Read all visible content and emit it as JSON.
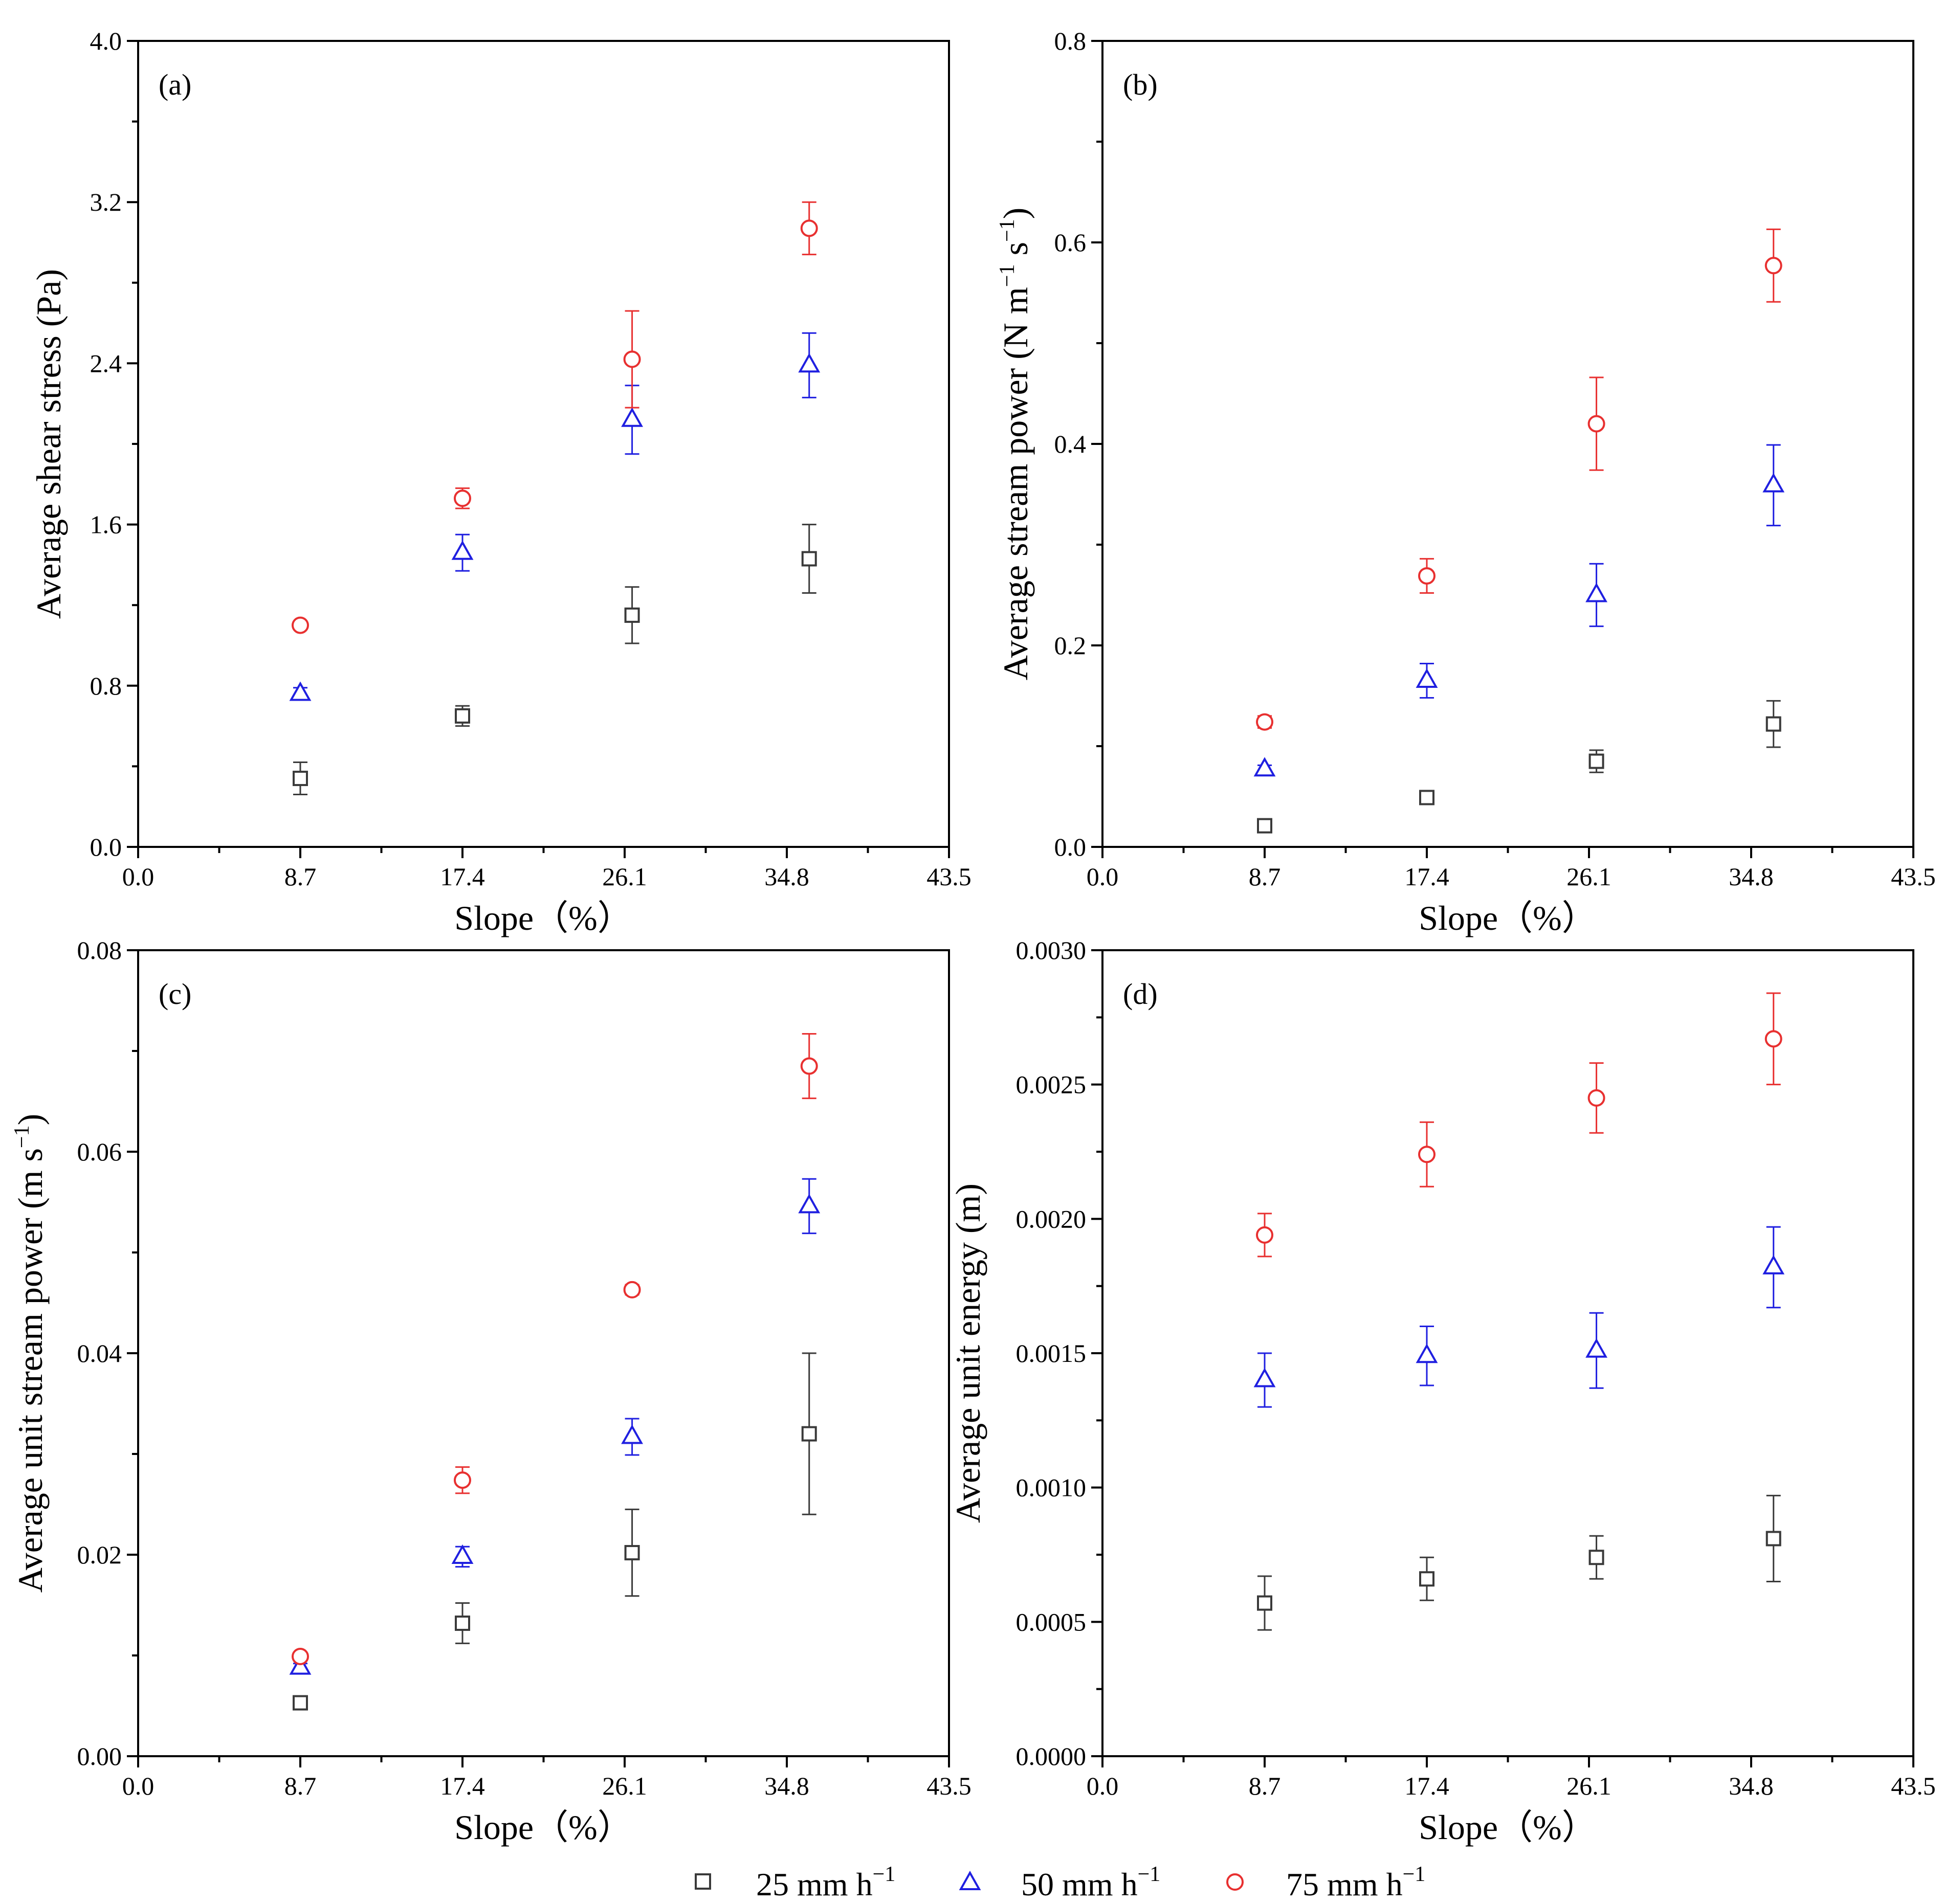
{
  "chart_data": [
    {
      "type": "scatter",
      "panel_label": "(a)",
      "xlabel": "Slope（%）",
      "ylabel": "Average shear stress (Pa)",
      "xlim": [
        0,
        43.5
      ],
      "ylim": [
        0,
        4.0
      ],
      "xticks": [
        "0.0",
        "8.7",
        "17.4",
        "26.1",
        "34.8",
        "43.5"
      ],
      "yticks": [
        "0.0",
        "0.8",
        "1.6",
        "2.4",
        "3.2",
        "4.0"
      ],
      "x": [
        8.7,
        17.4,
        26.5,
        36.0
      ],
      "series": [
        {
          "name": "25 mm h−1",
          "values": [
            0.34,
            0.65,
            1.15,
            1.43
          ],
          "errors": [
            0.08,
            0.05,
            0.14,
            0.17
          ]
        },
        {
          "name": "50 mm h−1",
          "values": [
            0.76,
            1.46,
            2.12,
            2.39
          ],
          "errors": [
            0.03,
            0.09,
            0.17,
            0.16
          ]
        },
        {
          "name": "75 mm h−1",
          "values": [
            1.1,
            1.73,
            2.42,
            3.07
          ],
          "errors": [
            0.01,
            0.05,
            0.24,
            0.13
          ]
        }
      ]
    },
    {
      "type": "scatter",
      "panel_label": "(b)",
      "xlabel": "Slope（%）",
      "ylabel_parts": [
        "Average stream power (N m",
        "−1",
        " s",
        "−1",
        ")"
      ],
      "xlim": [
        0,
        43.5
      ],
      "ylim": [
        0,
        0.8
      ],
      "xticks": [
        "0.0",
        "8.7",
        "17.4",
        "26.1",
        "34.8",
        "43.5"
      ],
      "yticks": [
        "0.0",
        "0.2",
        "0.4",
        "0.6",
        "0.8"
      ],
      "x": [
        8.7,
        17.4,
        26.5,
        36.0
      ],
      "series": [
        {
          "name": "25 mm h−1",
          "values": [
            0.021,
            0.049,
            0.085,
            0.122
          ],
          "errors": [
            0.003,
            0.005,
            0.011,
            0.023
          ]
        },
        {
          "name": "50 mm h−1",
          "values": [
            0.077,
            0.165,
            0.25,
            0.359
          ],
          "errors": [
            0.004,
            0.017,
            0.031,
            0.04
          ]
        },
        {
          "name": "75 mm h−1",
          "values": [
            0.124,
            0.269,
            0.42,
            0.577
          ],
          "errors": [
            0.006,
            0.017,
            0.046,
            0.036
          ]
        }
      ]
    },
    {
      "type": "scatter",
      "panel_label": "(c)",
      "xlabel": "Slope（%）",
      "ylabel_parts": [
        "Average unit stream power (m s",
        "−1",
        ")"
      ],
      "xlim": [
        0,
        43.5
      ],
      "ylim": [
        0,
        0.08
      ],
      "xticks": [
        "0.0",
        "8.7",
        "17.4",
        "26.1",
        "34.8",
        "43.5"
      ],
      "yticks": [
        "0.00",
        "0.02",
        "0.04",
        "0.06",
        "0.08"
      ],
      "x": [
        8.7,
        17.4,
        26.5,
        36.0
      ],
      "series": [
        {
          "name": "25 mm h−1",
          "values": [
            0.0053,
            0.0132,
            0.0202,
            0.032
          ],
          "errors": [
            0.0005,
            0.002,
            0.0043,
            0.008
          ]
        },
        {
          "name": "50 mm h−1",
          "values": [
            0.0088,
            0.0198,
            0.0317,
            0.0546
          ],
          "errors": [
            0.0004,
            0.001,
            0.0018,
            0.0027
          ]
        },
        {
          "name": "75 mm h−1",
          "values": [
            0.0099,
            0.0274,
            0.0463,
            0.0685
          ],
          "errors": [
            0.0003,
            0.0013,
            0.0005,
            0.0032
          ]
        }
      ]
    },
    {
      "type": "scatter",
      "panel_label": "(d)",
      "xlabel": "Slope（%）",
      "ylabel": "Average unit energy (m)",
      "xlim": [
        0,
        43.5
      ],
      "ylim": [
        0,
        0.003
      ],
      "xticks": [
        "0.0",
        "8.7",
        "17.4",
        "26.1",
        "34.8",
        "43.5"
      ],
      "yticks": [
        "0.0000",
        "0.0005",
        "0.0010",
        "0.0015",
        "0.0020",
        "0.0025",
        "0.0030"
      ],
      "x": [
        8.7,
        17.4,
        26.5,
        36.0
      ],
      "series": [
        {
          "name": "25 mm h−1",
          "values": [
            0.00057,
            0.00066,
            0.00074,
            0.00081
          ],
          "errors": [
            0.0001,
            8e-05,
            8e-05,
            0.00016
          ]
        },
        {
          "name": "50 mm h−1",
          "values": [
            0.0014,
            0.00149,
            0.00151,
            0.00182
          ],
          "errors": [
            0.0001,
            0.00011,
            0.00014,
            0.00015
          ]
        },
        {
          "name": "75 mm h−1",
          "values": [
            0.00194,
            0.00224,
            0.00245,
            0.00267
          ],
          "errors": [
            8e-05,
            0.00012,
            0.00013,
            0.00017
          ]
        }
      ]
    }
  ],
  "legend": {
    "items": [
      {
        "rate": "25 mm h",
        "exp": "−1",
        "marker": "square",
        "color": "#3a3a3a"
      },
      {
        "rate": "50 mm h",
        "exp": "−1",
        "marker": "triangle",
        "color": "#1f1fe0"
      },
      {
        "rate": "75 mm h",
        "exp": "−1",
        "marker": "circle",
        "color": "#e83030"
      }
    ]
  },
  "colors": {
    "series": [
      "#3a3a3a",
      "#1f1fe0",
      "#e83030"
    ],
    "axis": "#000000"
  }
}
